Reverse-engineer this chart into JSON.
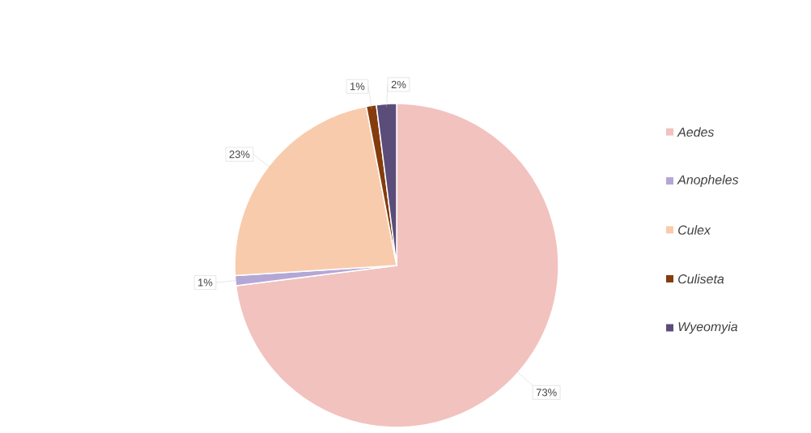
{
  "chart_data": {
    "type": "pie",
    "categories": [
      "Aedes",
      "Anopheles",
      "Culex",
      "Culiseta",
      "Wyeomyia"
    ],
    "values": [
      73,
      1,
      23,
      1,
      2
    ],
    "colors": [
      "#f2c2bf",
      "#b4a7d6",
      "#f8cbad",
      "#843c0c",
      "#5b4d7a"
    ],
    "value_labels": [
      "73%",
      "1%",
      "23%",
      "1%",
      "2%"
    ],
    "legend": "right"
  }
}
